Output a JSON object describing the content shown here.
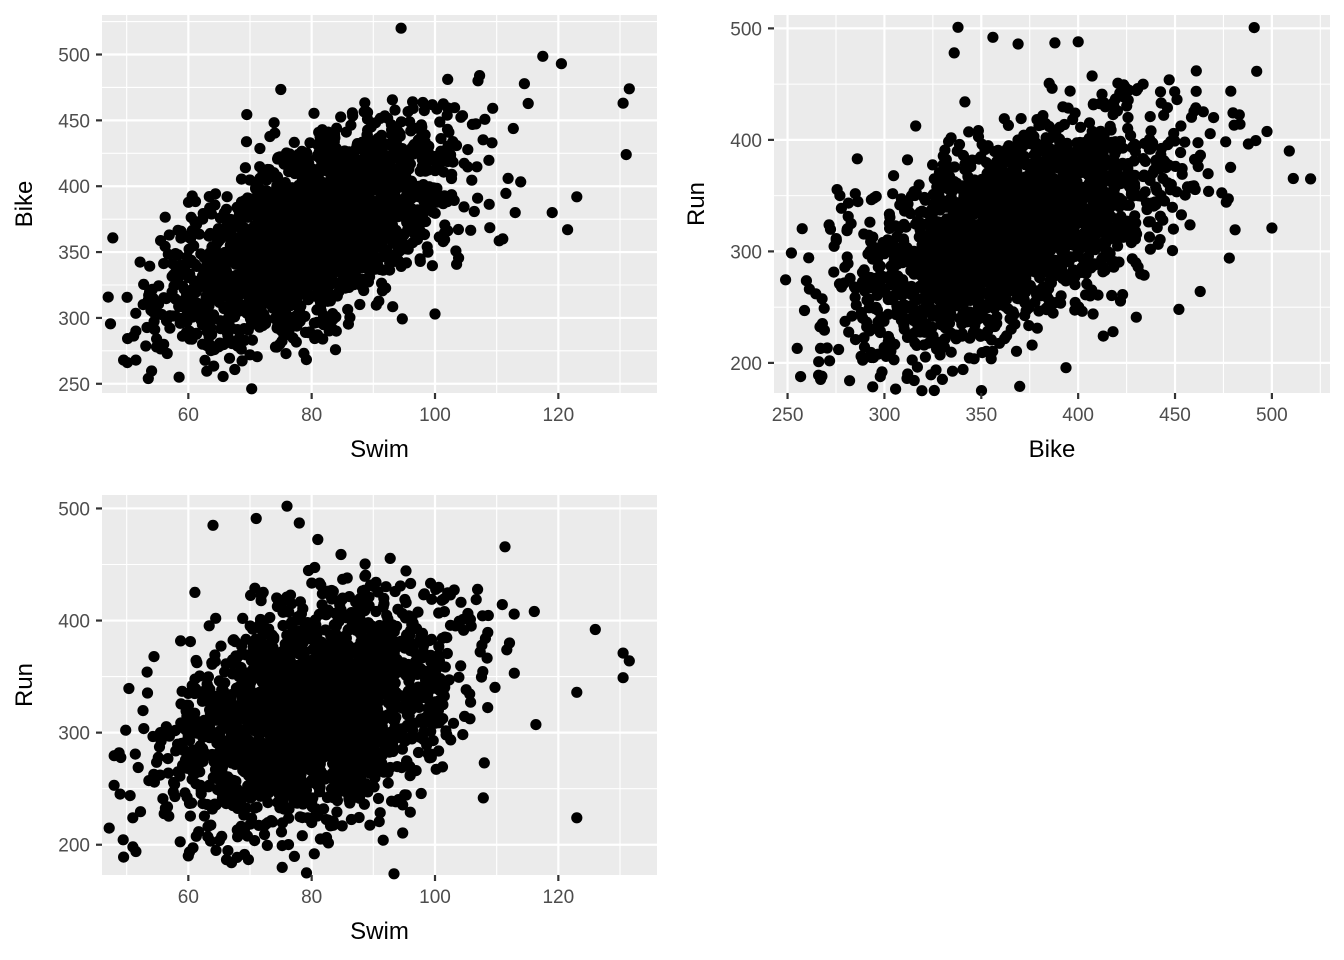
{
  "chart_data": [
    {
      "type": "scatter",
      "title": "",
      "xlabel": "Swim",
      "ylabel": "Bike",
      "xlim": [
        46,
        136
      ],
      "ylim": [
        243,
        530
      ],
      "xticks": [
        60,
        80,
        100,
        120
      ],
      "yticks": [
        250,
        300,
        350,
        400,
        450,
        500
      ],
      "xtick_labels": [
        "60",
        "80",
        "100",
        "120"
      ],
      "ytick_labels": [
        "250",
        "300",
        "350",
        "400",
        "450",
        "500"
      ],
      "grid": true,
      "n_points": 2400,
      "trend": {
        "x_mean": 80,
        "x_sd": 11,
        "y_mean": 365,
        "y_sd": 40,
        "r": 0.6
      },
      "points": [
        [
          49.5,
          268
        ],
        [
          51.5,
          268
        ],
        [
          51.5,
          290
        ],
        [
          58.5,
          255
        ],
        [
          94.5,
          520
        ],
        [
          131.5,
          474
        ],
        [
          131,
          424
        ],
        [
          130.5,
          463
        ],
        [
          123,
          392
        ],
        [
          121.5,
          367
        ],
        [
          120.5,
          493
        ],
        [
          119,
          380
        ],
        [
          113,
          380
        ],
        [
          111,
          360
        ],
        [
          100,
          303
        ],
        [
          84,
          290
        ],
        [
          79,
          289
        ],
        [
          70,
          272
        ],
        [
          63,
          279
        ],
        [
          56,
          280
        ]
      ]
    },
    {
      "type": "scatter",
      "title": "",
      "xlabel": "Bike",
      "ylabel": "Run",
      "xlim": [
        243,
        530
      ],
      "ylim": [
        173,
        512
      ],
      "xticks": [
        250,
        300,
        350,
        400,
        450,
        500
      ],
      "yticks": [
        200,
        300,
        400,
        500
      ],
      "xtick_labels": [
        "250",
        "300",
        "350",
        "400",
        "450",
        "500"
      ],
      "ytick_labels": [
        "200",
        "300",
        "400",
        "500"
      ],
      "grid": true,
      "n_points": 2400,
      "trend": {
        "x_mean": 365,
        "x_sd": 40,
        "y_mean": 318,
        "y_sd": 50,
        "r": 0.55
      },
      "points": [
        [
          255,
          213
        ],
        [
          266,
          189
        ],
        [
          267,
          213
        ],
        [
          282,
          184
        ],
        [
          277,
          350
        ],
        [
          286,
          383
        ],
        [
          338,
          501
        ],
        [
          336,
          478
        ],
        [
          356,
          492
        ],
        [
          369,
          486
        ],
        [
          400,
          488
        ],
        [
          388,
          487
        ],
        [
          520,
          365
        ],
        [
          509,
          390
        ],
        [
          500,
          321
        ],
        [
          452,
          248
        ],
        [
          463,
          264
        ],
        [
          478,
          294
        ],
        [
          418,
          228
        ],
        [
          430,
          241
        ],
        [
          413,
          224
        ],
        [
          312,
          190
        ]
      ]
    },
    {
      "type": "scatter",
      "title": "",
      "xlabel": "Swim",
      "ylabel": "Run",
      "xlim": [
        46,
        136
      ],
      "ylim": [
        173,
        512
      ],
      "xticks": [
        60,
        80,
        100,
        120
      ],
      "yticks": [
        200,
        300,
        400,
        500
      ],
      "xtick_labels": [
        "60",
        "80",
        "100",
        "120"
      ],
      "ytick_labels": [
        "200",
        "300",
        "400",
        "500"
      ],
      "grid": true,
      "n_points": 2400,
      "trend": {
        "x_mean": 80,
        "x_sd": 11,
        "y_mean": 318,
        "y_sd": 50,
        "r": 0.35
      },
      "points": [
        [
          49.5,
          189
        ],
        [
          51.5,
          194
        ],
        [
          51,
          224
        ],
        [
          76,
          502
        ],
        [
          71,
          491
        ],
        [
          64,
          485
        ],
        [
          78,
          487
        ],
        [
          123,
          224
        ],
        [
          126,
          392
        ],
        [
          130.5,
          371
        ],
        [
          130.5,
          349
        ],
        [
          131.5,
          364
        ],
        [
          123,
          336
        ],
        [
          108,
          273
        ],
        [
          96,
          229
        ],
        [
          82,
          205
        ],
        [
          67,
          184
        ],
        [
          60,
          190
        ]
      ]
    }
  ]
}
